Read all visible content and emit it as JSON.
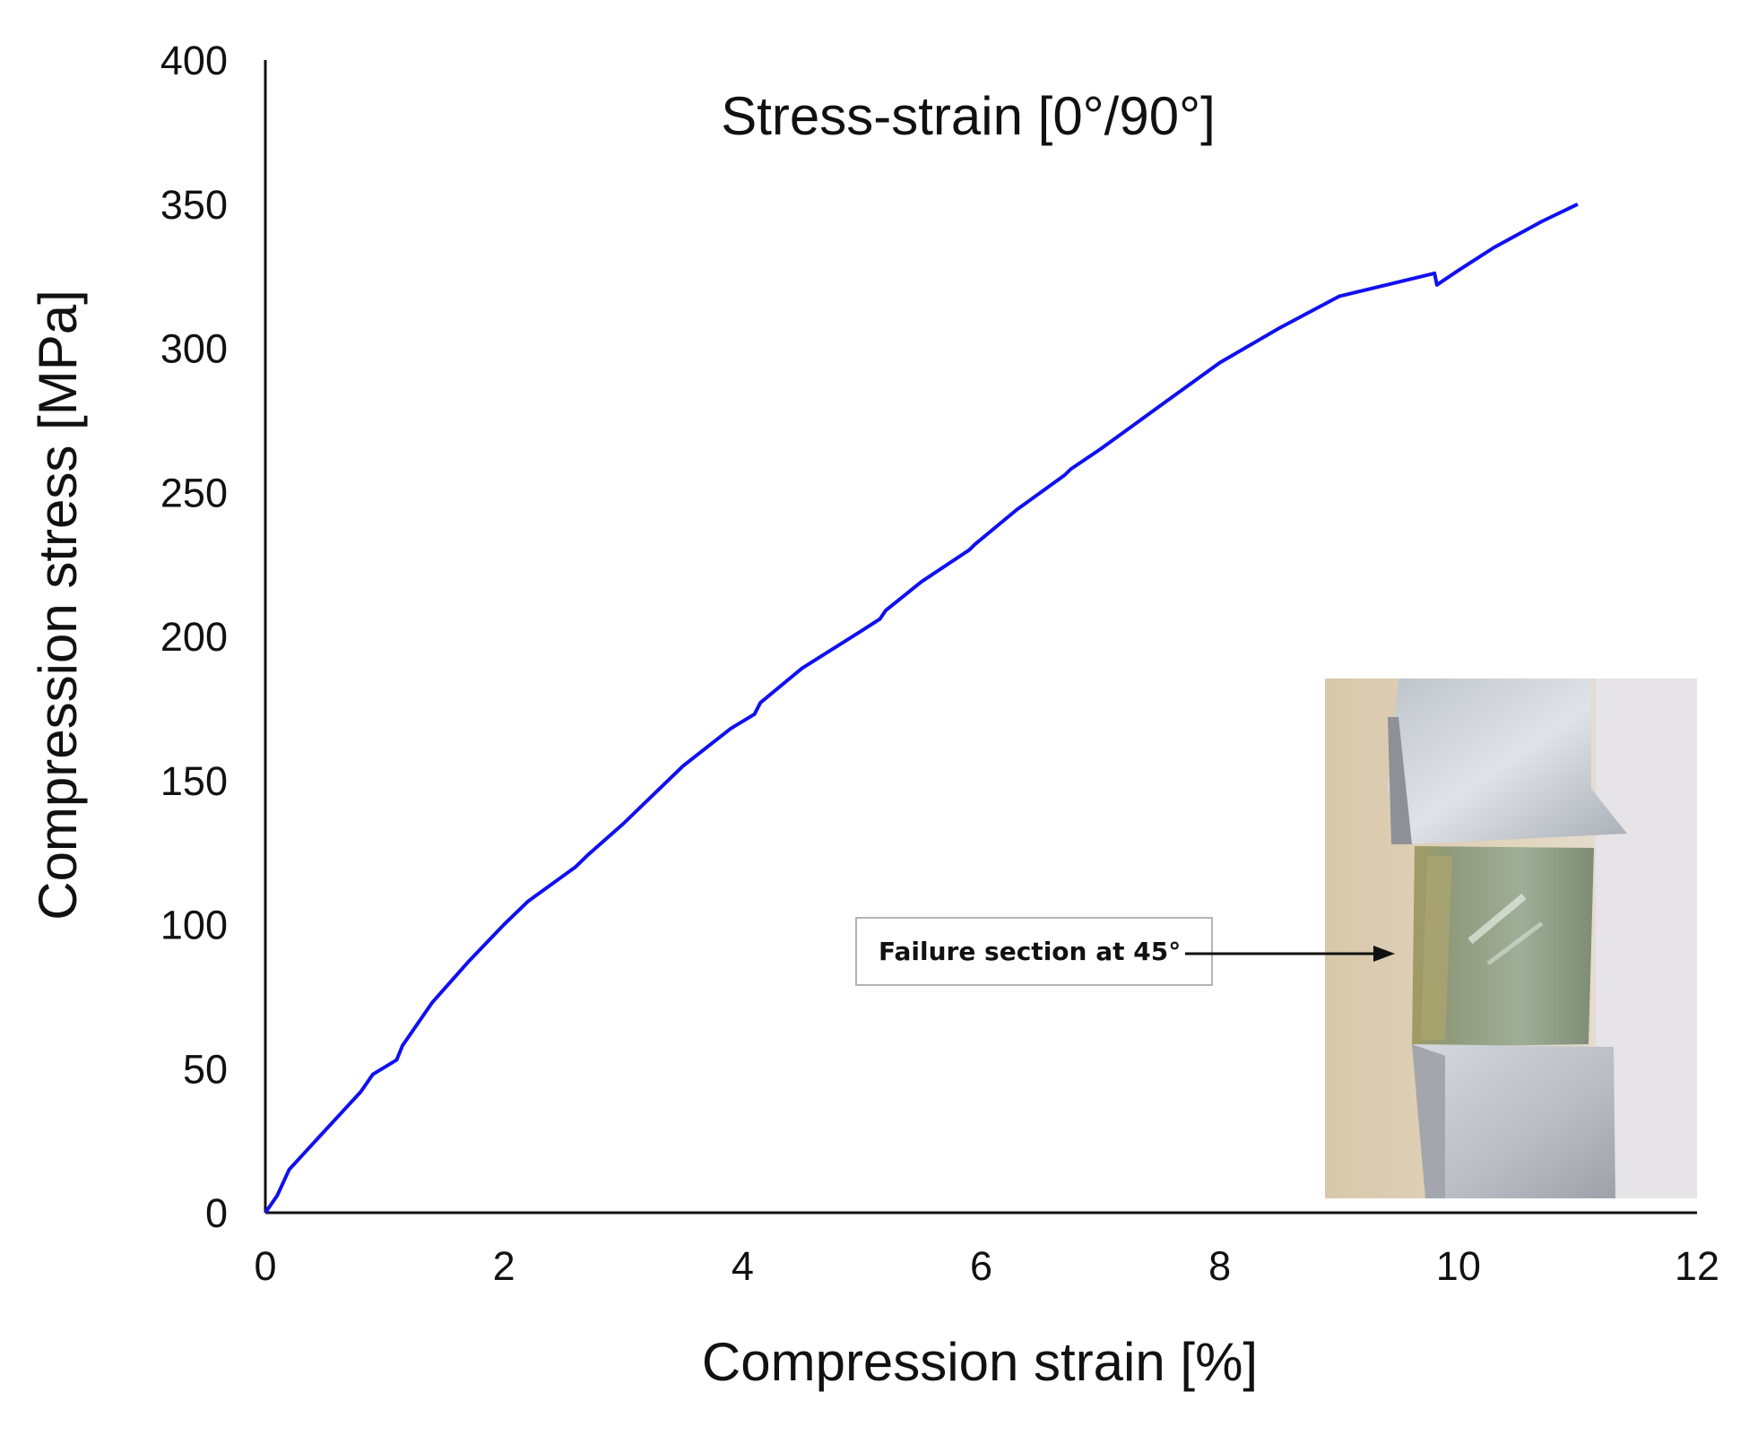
{
  "chart_data": {
    "type": "line",
    "title": "Stress-strain [0°/90°]",
    "xlabel": "Compression strain [%]",
    "ylabel": "Compression stress [MPa]",
    "xlim": [
      0,
      12
    ],
    "ylim": [
      0,
      400
    ],
    "xticks": [
      "0",
      "2",
      "4",
      "6",
      "8",
      "10",
      "12"
    ],
    "yticks": [
      "0",
      "50",
      "100",
      "150",
      "200",
      "250",
      "300",
      "350",
      "400"
    ],
    "grid": false,
    "legend": "none",
    "series": [
      {
        "color": "#1010f0",
        "x": [
          0,
          0.1,
          0.2,
          0.4,
          0.6,
          0.8,
          0.9,
          1.1,
          1.15,
          1.4,
          1.7,
          2.0,
          2.2,
          2.6,
          2.7,
          3.0,
          3.3,
          3.5,
          3.9,
          4.1,
          4.15,
          4.5,
          5.0,
          5.15,
          5.2,
          5.5,
          5.9,
          5.95,
          6.3,
          6.7,
          6.75,
          7.0,
          7.5,
          8.0,
          8.5,
          9.0,
          9.5,
          9.8,
          9.82,
          10.0,
          10.3,
          10.7,
          11.0
        ],
        "y": [
          0,
          6,
          15,
          24,
          33,
          42,
          48,
          53,
          58,
          73,
          87,
          100,
          108,
          120,
          124,
          135,
          147,
          155,
          168,
          173,
          177,
          189,
          202,
          206,
          209,
          219,
          230,
          232,
          244,
          256,
          258,
          265,
          280,
          295,
          307,
          318,
          323,
          326,
          322,
          327,
          335,
          344,
          350
        ]
      }
    ],
    "annotations": [
      {
        "text": "Failure section at 45°",
        "points_to": "specimen photo"
      }
    ]
  }
}
